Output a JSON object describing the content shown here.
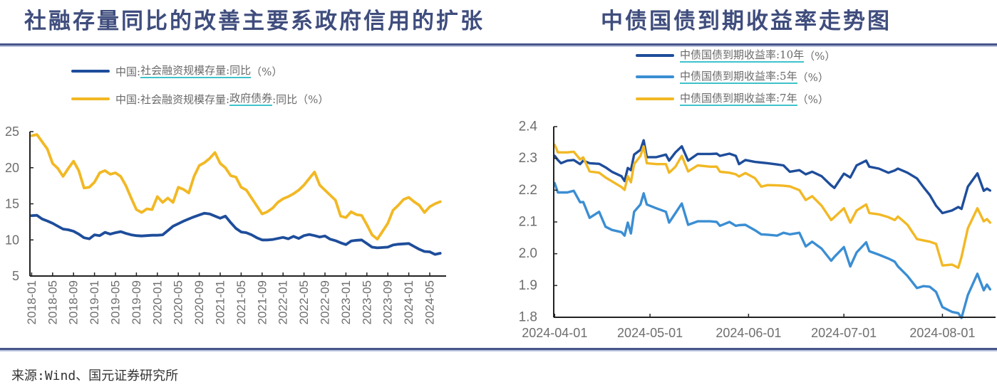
{
  "footer": {
    "source": "来源:Wind、国元证券研究所"
  },
  "chart_data": [
    {
      "type": "line",
      "title": "社融存量同比的改善主要系政府信用的扩张",
      "xlabel": "",
      "ylabel": "",
      "grid": false,
      "legend_position": "top-left",
      "ylim": [
        5,
        25
      ],
      "yticks": [
        5,
        10,
        15,
        20,
        25
      ],
      "xticks": [
        "2018-01",
        "2018-05",
        "2018-09",
        "2019-01",
        "2019-05",
        "2019-09",
        "2020-01",
        "2020-05",
        "2020-09",
        "2021-01",
        "2021-05",
        "2021-09",
        "2022-01",
        "2022-05",
        "2022-09",
        "2023-01",
        "2023-05",
        "2023-09",
        "2024-01",
        "2024-05"
      ],
      "legend": [
        {
          "prefix": "中国:",
          "underlined": "社会融资规模存量:同比",
          "suffix": "（%）"
        },
        {
          "prefix": "中国:社会融资规模存量:",
          "underlined": "政府债券",
          "suffix": ":同比（%）"
        }
      ],
      "x": [
        "2018-01",
        "2018-02",
        "2018-03",
        "2018-04",
        "2018-05",
        "2018-06",
        "2018-07",
        "2018-08",
        "2018-09",
        "2018-10",
        "2018-11",
        "2018-12",
        "2019-01",
        "2019-02",
        "2019-03",
        "2019-04",
        "2019-05",
        "2019-06",
        "2019-07",
        "2019-08",
        "2019-09",
        "2019-10",
        "2019-11",
        "2019-12",
        "2020-01",
        "2020-02",
        "2020-03",
        "2020-04",
        "2020-05",
        "2020-06",
        "2020-07",
        "2020-08",
        "2020-09",
        "2020-10",
        "2020-11",
        "2020-12",
        "2021-01",
        "2021-02",
        "2021-03",
        "2021-04",
        "2021-05",
        "2021-06",
        "2021-07",
        "2021-08",
        "2021-09",
        "2021-10",
        "2021-11",
        "2021-12",
        "2022-01",
        "2022-02",
        "2022-03",
        "2022-04",
        "2022-05",
        "2022-06",
        "2022-07",
        "2022-08",
        "2022-09",
        "2022-10",
        "2022-11",
        "2022-12",
        "2023-01",
        "2023-02",
        "2023-03",
        "2023-04",
        "2023-05",
        "2023-06",
        "2023-07",
        "2023-08",
        "2023-09",
        "2023-10",
        "2023-11",
        "2023-12",
        "2024-01",
        "2024-02",
        "2024-03",
        "2024-04",
        "2024-05",
        "2024-06",
        "2024-07"
      ],
      "series": [
        {
          "name": "中国:社会融资规模存量:同比（%）",
          "color": "#1e4d9b",
          "values": [
            13.36,
            13.4,
            12.9,
            12.63,
            12.3,
            11.9,
            11.5,
            11.4,
            11.2,
            10.8,
            10.3,
            10.15,
            10.7,
            10.6,
            11.05,
            10.8,
            11.0,
            11.15,
            10.9,
            10.7,
            10.6,
            10.55,
            10.6,
            10.65,
            10.65,
            10.7,
            11.3,
            11.9,
            12.25,
            12.6,
            12.9,
            13.2,
            13.45,
            13.7,
            13.6,
            13.3,
            13.0,
            13.3,
            12.4,
            11.6,
            11.1,
            11.0,
            10.7,
            10.3,
            10.0,
            10.0,
            10.05,
            10.2,
            10.35,
            10.15,
            10.5,
            10.2,
            10.6,
            10.75,
            10.6,
            10.4,
            10.55,
            10.1,
            9.9,
            9.6,
            9.35,
            9.85,
            9.95,
            10.0,
            9.5,
            9.0,
            8.9,
            8.95,
            9.0,
            9.3,
            9.4,
            9.45,
            9.5,
            9.1,
            8.7,
            8.4,
            8.35,
            8.0,
            8.15
          ]
        },
        {
          "name": "中国:社会融资规模存量:政府债券:同比（%）",
          "color": "#f2b824",
          "values": [
            24.43,
            24.6,
            23.6,
            22.6,
            20.6,
            19.9,
            18.8,
            19.9,
            20.9,
            19.6,
            17.2,
            17.3,
            18.0,
            19.3,
            19.6,
            19.1,
            19.3,
            18.8,
            17.5,
            15.8,
            14.2,
            13.8,
            14.3,
            14.2,
            16.0,
            15.2,
            15.8,
            15.2,
            17.3,
            17.0,
            16.5,
            18.8,
            20.3,
            20.7,
            21.3,
            22.1,
            20.6,
            20.0,
            18.9,
            18.7,
            17.3,
            16.9,
            15.8,
            14.7,
            13.6,
            13.9,
            14.4,
            15.2,
            15.7,
            16.0,
            16.4,
            16.9,
            17.6,
            18.5,
            19.4,
            17.6,
            16.9,
            16.2,
            15.5,
            13.3,
            13.1,
            13.9,
            13.5,
            13.4,
            12.1,
            10.7,
            10.1,
            11.2,
            12.3,
            14.1,
            14.8,
            15.6,
            15.9,
            15.3,
            14.8,
            13.8,
            14.6,
            15.0,
            15.3
          ]
        }
      ]
    },
    {
      "type": "line",
      "title": "中债国债到期收益率走势图",
      "xlabel": "",
      "ylabel": "",
      "grid": false,
      "legend_position": "top",
      "ylim": [
        1.8,
        2.4
      ],
      "yticks": [
        1.8,
        1.9,
        2.0,
        2.1,
        2.2,
        2.3,
        2.4
      ],
      "ytick_labels": [
        "1.8",
        "1.9",
        "2.0",
        "2.1",
        "2.2",
        "2.3",
        "2.4"
      ],
      "xlim": [
        "2024-04-01",
        "2024-08-18"
      ],
      "xticks": [
        "2024-04-01",
        "2024-05-01",
        "2024-06-01",
        "2024-07-01",
        "2024-08-01"
      ],
      "legend": [
        {
          "prefix": "",
          "underlined": "中债国债到期收益率:10年",
          "suffix": "（%）"
        },
        {
          "prefix": "",
          "underlined": "中债国债到期收益率:5年",
          "suffix": "（%）"
        },
        {
          "prefix": "",
          "underlined": "中债国债到期收益率:7年",
          "suffix": "（%）"
        }
      ],
      "x": [
        "2024-04-01",
        "2024-04-02",
        "2024-04-03",
        "2024-04-05",
        "2024-04-07",
        "2024-04-09",
        "2024-04-10",
        "2024-04-12",
        "2024-04-15",
        "2024-04-17",
        "2024-04-19",
        "2024-04-22",
        "2024-04-23",
        "2024-04-24",
        "2024-04-25",
        "2024-04-26",
        "2024-04-28",
        "2024-04-29",
        "2024-04-30",
        "2024-05-03",
        "2024-05-06",
        "2024-05-07",
        "2024-05-09",
        "2024-05-11",
        "2024-05-13",
        "2024-05-16",
        "2024-05-20",
        "2024-05-22",
        "2024-05-23",
        "2024-05-26",
        "2024-05-28",
        "2024-05-29",
        "2024-05-31",
        "2024-06-03",
        "2024-06-05",
        "2024-06-07",
        "2024-06-10",
        "2024-06-12",
        "2024-06-14",
        "2024-06-17",
        "2024-06-19",
        "2024-06-21",
        "2024-06-24",
        "2024-06-27",
        "2024-06-28",
        "2024-07-01",
        "2024-07-03",
        "2024-07-05",
        "2024-07-08",
        "2024-07-09",
        "2024-07-12",
        "2024-07-15",
        "2024-07-17",
        "2024-07-18",
        "2024-07-21",
        "2024-07-24",
        "2024-07-26",
        "2024-07-28",
        "2024-07-30",
        "2024-08-01",
        "2024-08-04",
        "2024-08-06",
        "2024-08-07",
        "2024-08-09",
        "2024-08-12",
        "2024-08-14",
        "2024-08-15",
        "2024-08-16"
      ],
      "series": [
        {
          "name": "中债国债到期收益率:10年（%）",
          "color": "#1e4d9b",
          "values": [
            2.308,
            2.295,
            2.285,
            2.293,
            2.295,
            2.282,
            2.293,
            2.285,
            2.283,
            2.272,
            2.258,
            2.244,
            2.229,
            2.27,
            2.263,
            2.312,
            2.327,
            2.357,
            2.304,
            2.304,
            2.312,
            2.293,
            2.319,
            2.338,
            2.293,
            2.314,
            2.314,
            2.315,
            2.308,
            2.315,
            2.308,
            2.282,
            2.295,
            2.289,
            2.287,
            2.285,
            2.281,
            2.278,
            2.258,
            2.263,
            2.25,
            2.258,
            2.244,
            2.215,
            2.207,
            2.252,
            2.24,
            2.278,
            2.293,
            2.274,
            2.268,
            2.255,
            2.262,
            2.268,
            2.255,
            2.237,
            2.21,
            2.185,
            2.151,
            2.128,
            2.136,
            2.147,
            2.141,
            2.211,
            2.253,
            2.198,
            2.205,
            2.199
          ]
        },
        {
          "name": "中债国债到期收益率:5年（%）",
          "color": "#3b8ed3",
          "values": [
            2.222,
            2.193,
            2.193,
            2.193,
            2.198,
            2.162,
            2.163,
            2.113,
            2.132,
            2.085,
            2.075,
            2.068,
            2.057,
            2.098,
            2.064,
            2.132,
            2.155,
            2.19,
            2.155,
            2.143,
            2.132,
            2.098,
            2.128,
            2.158,
            2.091,
            2.102,
            2.102,
            2.1,
            2.088,
            2.1,
            2.088,
            2.09,
            2.091,
            2.074,
            2.061,
            2.06,
            2.057,
            2.066,
            2.061,
            2.066,
            2.023,
            2.038,
            2.016,
            1.978,
            1.99,
            2.021,
            1.96,
            2.004,
            2.036,
            2.008,
            1.997,
            1.985,
            1.975,
            1.96,
            1.93,
            1.892,
            1.898,
            1.896,
            1.88,
            1.832,
            1.817,
            1.813,
            1.798,
            1.87,
            1.937,
            1.885,
            1.903,
            1.888
          ]
        },
        {
          "name": "中债国债到期收益率:7年（%）",
          "color": "#f2b824",
          "values": [
            2.343,
            2.319,
            2.319,
            2.319,
            2.321,
            2.297,
            2.303,
            2.259,
            2.255,
            2.24,
            2.228,
            2.21,
            2.201,
            2.244,
            2.225,
            2.282,
            2.308,
            2.338,
            2.285,
            2.282,
            2.282,
            2.255,
            2.274,
            2.308,
            2.259,
            2.278,
            2.274,
            2.274,
            2.258,
            2.255,
            2.25,
            2.243,
            2.254,
            2.238,
            2.211,
            2.216,
            2.215,
            2.214,
            2.212,
            2.2,
            2.169,
            2.181,
            2.151,
            2.106,
            2.115,
            2.143,
            2.098,
            2.136,
            2.155,
            2.128,
            2.124,
            2.115,
            2.106,
            2.117,
            2.091,
            2.046,
            2.042,
            2.038,
            2.031,
            1.963,
            1.966,
            1.956,
            1.99,
            2.08,
            2.143,
            2.102,
            2.109,
            2.098
          ]
        }
      ]
    }
  ]
}
